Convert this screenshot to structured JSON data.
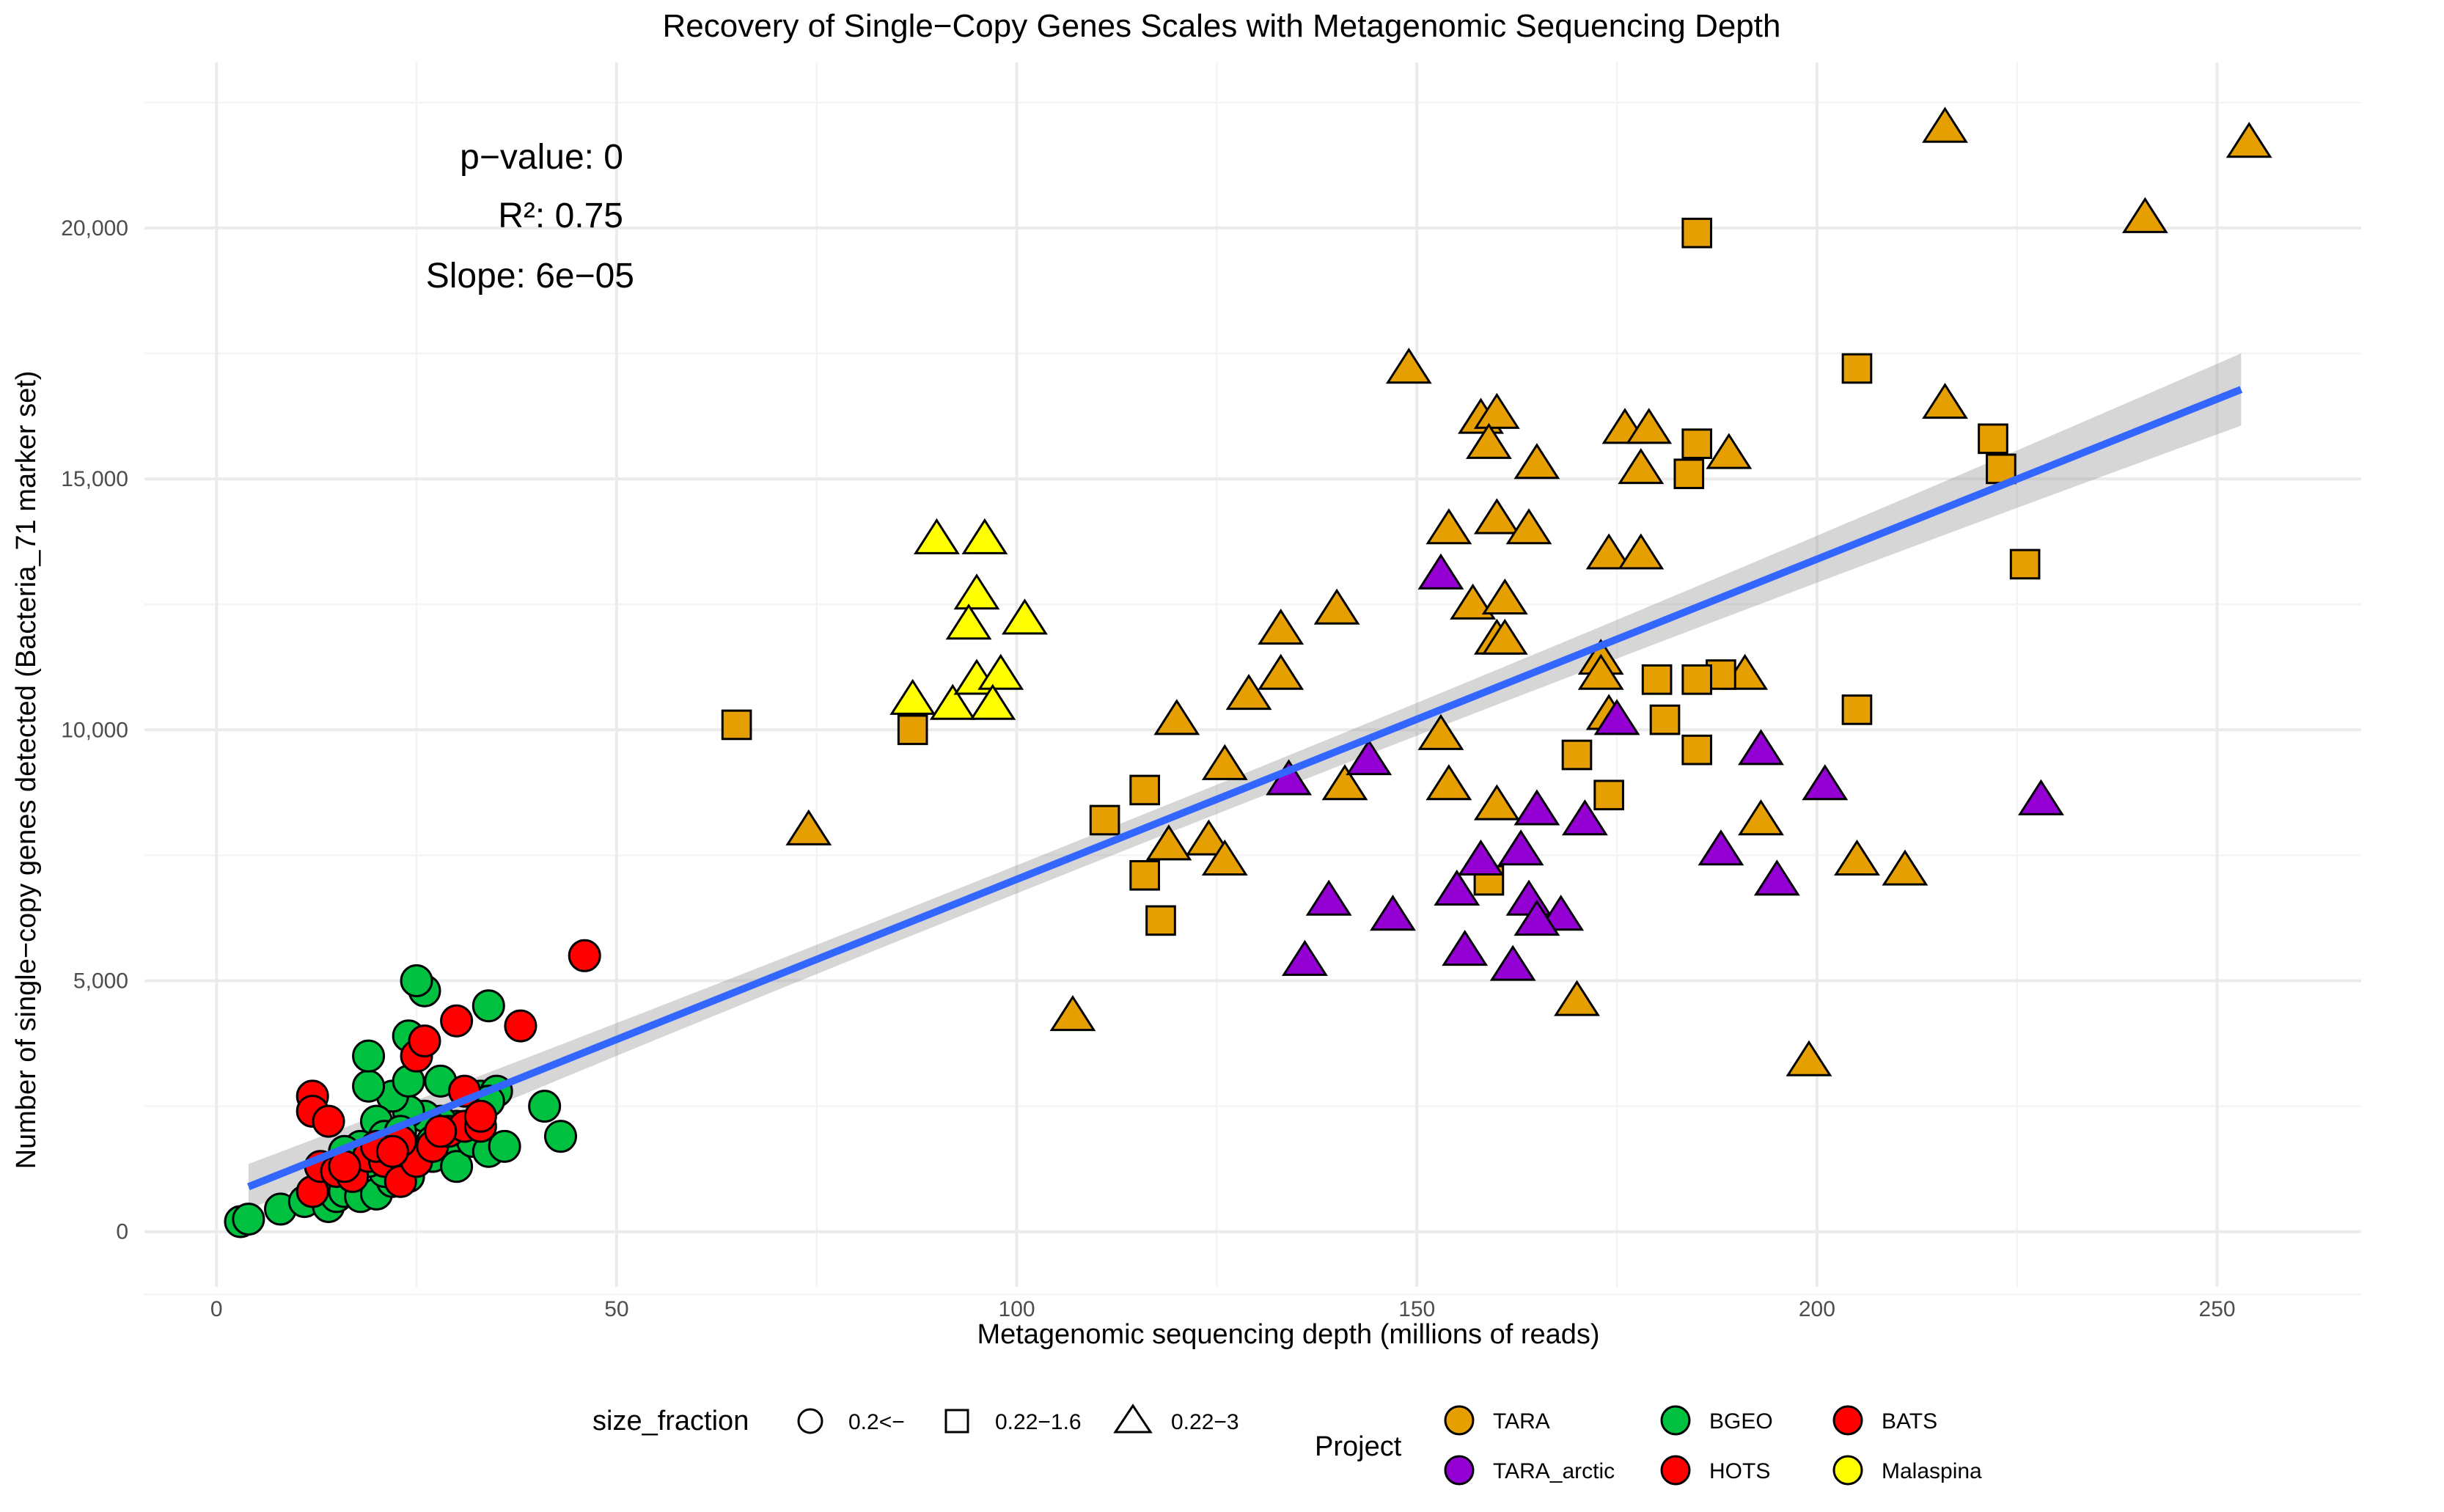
{
  "chart_data": {
    "type": "scatter",
    "title": "Recovery of Single−Copy Genes Scales with Metagenomic Sequencing Depth",
    "xlabel": "Metagenomic sequencing depth (millions of reads)",
    "ylabel": "Number of single−copy genes detected (Bacteria_71 marker set)",
    "xlim": [
      -9,
      268
    ],
    "ylim": [
      -1100,
      23300
    ],
    "x_ticks": [
      0,
      50,
      100,
      150,
      200,
      250
    ],
    "y_ticks": [
      0,
      5000,
      10000,
      15000,
      20000
    ],
    "y_tick_labels": [
      "0",
      "5,000",
      "10,000",
      "15,000",
      "20,000"
    ],
    "grid": true,
    "annotations": [
      "p−value: 0",
      "R²: 0.75",
      "Slope: 6e−05"
    ],
    "regression": {
      "x_range": [
        4,
        253
      ],
      "intercept": 640,
      "slope": 63.8,
      "band_halfwidth_ends": 720,
      "band_halfwidth_center": 280,
      "band_center_x": 100,
      "color": "#3366ff",
      "band_color": "#999999"
    },
    "legend_position": "bottom",
    "shape_legend": {
      "title": "size_fraction",
      "items": [
        {
          "label": "0.2<−",
          "shape": "circle"
        },
        {
          "label": "0.22−1.6",
          "shape": "square"
        },
        {
          "label": "0.22−3",
          "shape": "triangle"
        }
      ]
    },
    "color_legend": {
      "title": "Project",
      "items": [
        {
          "label": "TARA",
          "color": "#e69f00"
        },
        {
          "label": "TARA_arctic",
          "color": "#9400d3"
        },
        {
          "label": "BGEO",
          "color": "#00c040"
        },
        {
          "label": "HOTS",
          "color": "#ff0000"
        },
        {
          "label": "BATS",
          "color": "#ff0000"
        },
        {
          "label": "Malaspina",
          "color": "#ffff00"
        }
      ]
    },
    "series": [
      {
        "project": "TARA",
        "shape": "triangle",
        "points": [
          [
            216,
            22000
          ],
          [
            254,
            21700
          ],
          [
            241,
            20200
          ],
          [
            149,
            17200
          ],
          [
            216,
            16500
          ],
          [
            158,
            16200
          ],
          [
            160,
            16300
          ],
          [
            159,
            15700
          ],
          [
            176,
            16000
          ],
          [
            179,
            16000
          ],
          [
            189,
            15500
          ],
          [
            165,
            15300
          ],
          [
            178,
            15200
          ],
          [
            154,
            14000
          ],
          [
            160,
            14200
          ],
          [
            164,
            14000
          ],
          [
            174,
            13500
          ],
          [
            178,
            13500
          ],
          [
            157,
            12500
          ],
          [
            161,
            12600
          ],
          [
            140,
            12400
          ],
          [
            133,
            12000
          ],
          [
            160,
            11800
          ],
          [
            161,
            11800
          ],
          [
            133,
            11100
          ],
          [
            129,
            10700
          ],
          [
            173,
            11400
          ],
          [
            173,
            11100
          ],
          [
            191,
            11100
          ],
          [
            120,
            10200
          ],
          [
            174,
            10300
          ],
          [
            153,
            9900
          ],
          [
            126,
            9300
          ],
          [
            141,
            8900
          ],
          [
            154,
            8900
          ],
          [
            160,
            8500
          ],
          [
            119,
            7700
          ],
          [
            124,
            7800
          ],
          [
            126,
            7400
          ],
          [
            193,
            8200
          ],
          [
            205,
            7400
          ],
          [
            211,
            7200
          ],
          [
            107,
            4300
          ],
          [
            170,
            4600
          ],
          [
            199,
            3400
          ],
          [
            74,
            8000
          ]
        ]
      },
      {
        "project": "TARA",
        "shape": "square",
        "points": [
          [
            185,
            19900
          ],
          [
            205,
            17200
          ],
          [
            222,
            15800
          ],
          [
            223,
            15200
          ],
          [
            185,
            15700
          ],
          [
            184,
            15100
          ],
          [
            226,
            13300
          ],
          [
            188,
            11100
          ],
          [
            185,
            11000
          ],
          [
            180,
            11000
          ],
          [
            181,
            10200
          ],
          [
            205,
            10400
          ],
          [
            65,
            10100
          ],
          [
            87,
            10000
          ],
          [
            170,
            9500
          ],
          [
            185,
            9600
          ],
          [
            174,
            8700
          ],
          [
            111,
            8200
          ],
          [
            116,
            8800
          ],
          [
            116,
            7100
          ],
          [
            159,
            7000
          ],
          [
            118,
            6200
          ]
        ]
      },
      {
        "project": "TARA_arctic",
        "shape": "triangle",
        "points": [
          [
            153,
            13100
          ],
          [
            175,
            10200
          ],
          [
            144,
            9400
          ],
          [
            134,
            9000
          ],
          [
            193,
            9600
          ],
          [
            201,
            8900
          ],
          [
            228,
            8600
          ],
          [
            165,
            8400
          ],
          [
            171,
            8200
          ],
          [
            163,
            7600
          ],
          [
            158,
            7400
          ],
          [
            188,
            7600
          ],
          [
            195,
            7000
          ],
          [
            155,
            6800
          ],
          [
            139,
            6600
          ],
          [
            164,
            6600
          ],
          [
            168,
            6300
          ],
          [
            165,
            6200
          ],
          [
            147,
            6300
          ],
          [
            136,
            5400
          ],
          [
            156,
            5600
          ],
          [
            162,
            5300
          ]
        ]
      },
      {
        "project": "Malaspina",
        "shape": "triangle",
        "points": [
          [
            90,
            13800
          ],
          [
            96,
            13800
          ],
          [
            95,
            12700
          ],
          [
            94,
            12100
          ],
          [
            101,
            12200
          ],
          [
            87,
            10600
          ],
          [
            92,
            10500
          ],
          [
            95,
            11000
          ],
          [
            98,
            11100
          ],
          [
            97,
            10500
          ]
        ]
      },
      {
        "project": "BGEO",
        "shape": "circle",
        "points": [
          [
            3,
            200
          ],
          [
            4,
            250
          ],
          [
            8,
            450
          ],
          [
            11,
            600
          ],
          [
            14,
            500
          ],
          [
            15,
            700
          ],
          [
            16,
            800
          ],
          [
            18,
            700
          ],
          [
            20,
            750
          ],
          [
            22,
            1000
          ],
          [
            24,
            1100
          ],
          [
            21,
            1200
          ],
          [
            19,
            1400
          ],
          [
            17,
            1300
          ],
          [
            23,
            1400
          ],
          [
            25,
            1600
          ],
          [
            27,
            1500
          ],
          [
            29,
            1700
          ],
          [
            30,
            1300
          ],
          [
            32,
            1800
          ],
          [
            34,
            1600
          ],
          [
            36,
            1700
          ],
          [
            33,
            2700
          ],
          [
            35,
            2800
          ],
          [
            34,
            2600
          ],
          [
            30,
            2100
          ],
          [
            28,
            2200
          ],
          [
            26,
            2300
          ],
          [
            24,
            2400
          ],
          [
            22,
            2700
          ],
          [
            20,
            2200
          ],
          [
            19,
            2900
          ],
          [
            24,
            3000
          ],
          [
            28,
            3000
          ],
          [
            19,
            3500
          ],
          [
            24,
            3900
          ],
          [
            26,
            4800
          ],
          [
            25,
            5000
          ],
          [
            34,
            4500
          ],
          [
            41,
            2500
          ],
          [
            43,
            1900
          ],
          [
            18,
            1700
          ],
          [
            16,
            1600
          ],
          [
            21,
            1900
          ],
          [
            27,
            1800
          ],
          [
            23,
            2000
          ]
        ]
      },
      {
        "project": "HOTS",
        "shape": "circle",
        "points": [
          [
            12,
            800
          ],
          [
            13,
            1300
          ],
          [
            15,
            1200
          ],
          [
            17,
            1100
          ],
          [
            19,
            1500
          ],
          [
            21,
            1400
          ],
          [
            23,
            1000
          ],
          [
            25,
            1400
          ],
          [
            27,
            1700
          ],
          [
            29,
            2000
          ],
          [
            31,
            2100
          ],
          [
            33,
            2100
          ],
          [
            31,
            2800
          ],
          [
            25,
            3500
          ],
          [
            26,
            3800
          ],
          [
            30,
            4200
          ],
          [
            38,
            4100
          ],
          [
            46,
            5500
          ],
          [
            12,
            2700
          ],
          [
            12,
            2400
          ],
          [
            14,
            2200
          ]
        ]
      },
      {
        "project": "BATS",
        "shape": "circle",
        "points": [
          [
            16,
            1300
          ],
          [
            20,
            1700
          ],
          [
            23,
            1800
          ],
          [
            33,
            2300
          ],
          [
            28,
            2000
          ],
          [
            22,
            1600
          ]
        ]
      }
    ]
  }
}
